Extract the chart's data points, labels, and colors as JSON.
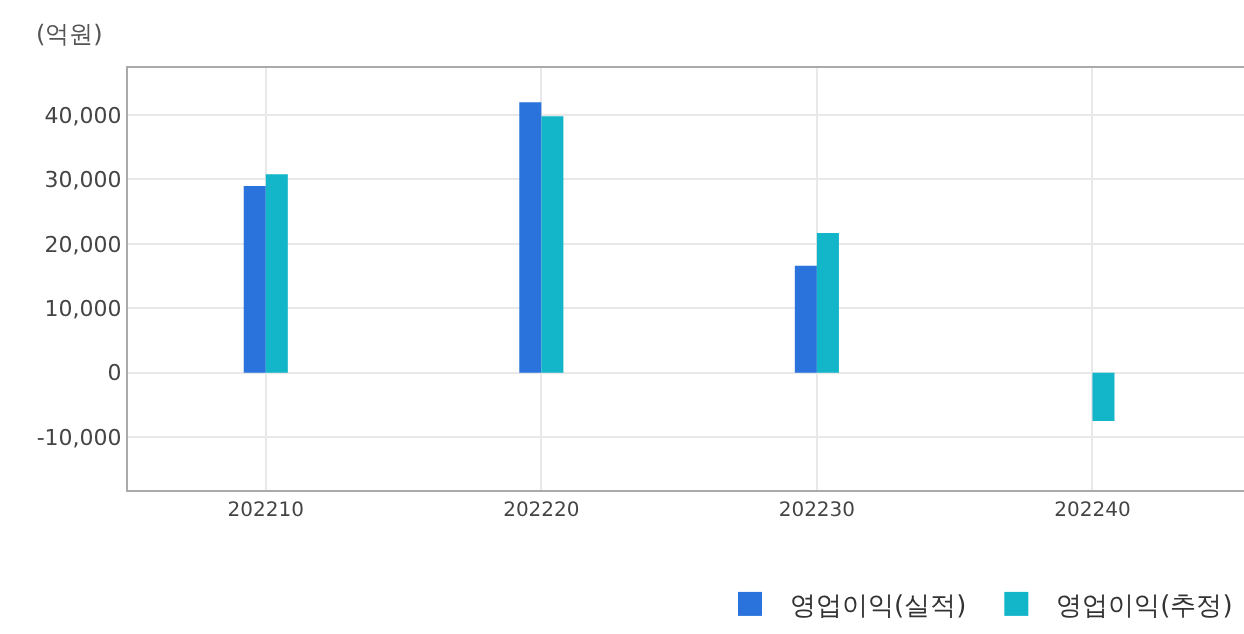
{
  "chart_data": {
    "type": "bar",
    "ylabel": "(억원)",
    "categories": [
      "202210",
      "202220",
      "202230",
      "202240"
    ],
    "series": [
      {
        "name": "영업이익(실적)",
        "color": "#2a73dc",
        "values": [
          29000,
          42000,
          16600,
          null
        ]
      },
      {
        "name": "영업이익(추정)",
        "color": "#13b5c8",
        "values": [
          30800,
          39800,
          21700,
          -7500
        ]
      }
    ],
    "ylim": [
      -18200,
      47300
    ],
    "yticks": [
      {
        "value": -10000,
        "label": "-10,000"
      },
      0,
      {
        "value": 10000,
        "label": "10,000"
      },
      {
        "value": 20000,
        "label": "20,000"
      },
      {
        "value": 30000,
        "label": "30,000"
      },
      {
        "value": 40000,
        "label": "40,000"
      }
    ],
    "grid": true,
    "legend": "bottom right"
  }
}
